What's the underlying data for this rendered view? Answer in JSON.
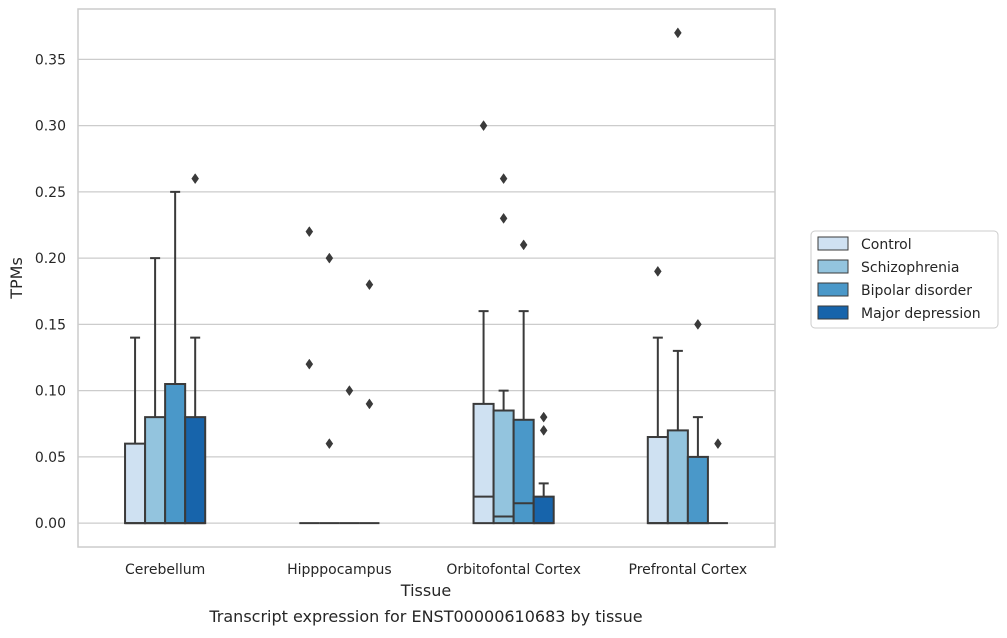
{
  "chart_data": {
    "type": "box",
    "xlabel": "Tissue",
    "ylabel": "TPMs",
    "caption": "Transcript expression for ENST00000610683 by tissue",
    "ylim": [
      -0.018,
      0.388
    ],
    "yticks": [
      0.0,
      0.05,
      0.1,
      0.15,
      0.2,
      0.25,
      0.3,
      0.35
    ],
    "ytick_labels": [
      "0.00",
      "0.05",
      "0.10",
      "0.15",
      "0.20",
      "0.25",
      "0.30",
      "0.35"
    ],
    "grid": "horizontal",
    "legend_position": "right",
    "categories": [
      "Cerebellum",
      "Hipppocampus",
      "Orbitofontal Cortex",
      "Prefrontal Cortex"
    ],
    "series": [
      {
        "name": "Control",
        "color": "#cfe1f2",
        "boxes": [
          {
            "q1": 0.0,
            "median": 0.0,
            "q3": 0.06,
            "whislo": 0.0,
            "whishi": 0.14,
            "fliers": []
          },
          {
            "q1": 0.0,
            "median": 0.0,
            "q3": 0.0,
            "whislo": 0.0,
            "whishi": 0.0,
            "fliers": [
              0.22,
              0.12
            ]
          },
          {
            "q1": 0.0,
            "median": 0.02,
            "q3": 0.09,
            "whislo": 0.0,
            "whishi": 0.16,
            "fliers": [
              0.3
            ]
          },
          {
            "q1": 0.0,
            "median": 0.0,
            "q3": 0.065,
            "whislo": 0.0,
            "whishi": 0.14,
            "fliers": [
              0.19
            ]
          }
        ]
      },
      {
        "name": "Schizophrenia",
        "color": "#93c4de",
        "boxes": [
          {
            "q1": 0.0,
            "median": 0.0,
            "q3": 0.08,
            "whislo": 0.0,
            "whishi": 0.2,
            "fliers": []
          },
          {
            "q1": 0.0,
            "median": 0.0,
            "q3": 0.0,
            "whislo": 0.0,
            "whishi": 0.0,
            "fliers": [
              0.2,
              0.06
            ]
          },
          {
            "q1": 0.0,
            "median": 0.005,
            "q3": 0.085,
            "whislo": 0.0,
            "whishi": 0.1,
            "fliers": [
              0.26,
              0.23
            ]
          },
          {
            "q1": 0.0,
            "median": 0.0,
            "q3": 0.07,
            "whislo": 0.0,
            "whishi": 0.13,
            "fliers": [
              0.37
            ]
          }
        ]
      },
      {
        "name": "Bipolar disorder",
        "color": "#4a98c9",
        "boxes": [
          {
            "q1": 0.0,
            "median": 0.0,
            "q3": 0.105,
            "whislo": 0.0,
            "whishi": 0.25,
            "fliers": []
          },
          {
            "q1": 0.0,
            "median": 0.0,
            "q3": 0.0,
            "whislo": 0.0,
            "whishi": 0.0,
            "fliers": [
              0.1
            ]
          },
          {
            "q1": 0.0,
            "median": 0.015,
            "q3": 0.078,
            "whislo": 0.0,
            "whishi": 0.16,
            "fliers": [
              0.21
            ]
          },
          {
            "q1": 0.0,
            "median": 0.0,
            "q3": 0.05,
            "whislo": 0.0,
            "whishi": 0.08,
            "fliers": [
              0.15
            ]
          }
        ]
      },
      {
        "name": "Major depression",
        "color": "#1764ab",
        "boxes": [
          {
            "q1": 0.0,
            "median": 0.0,
            "q3": 0.08,
            "whislo": 0.0,
            "whishi": 0.14,
            "fliers": [
              0.26
            ]
          },
          {
            "q1": 0.0,
            "median": 0.0,
            "q3": 0.0,
            "whislo": 0.0,
            "whishi": 0.0,
            "fliers": [
              0.18,
              0.09
            ]
          },
          {
            "q1": 0.0,
            "median": 0.0,
            "q3": 0.02,
            "whislo": 0.0,
            "whishi": 0.03,
            "fliers": [
              0.08,
              0.07
            ]
          },
          {
            "q1": 0.0,
            "median": 0.0,
            "q3": 0.0,
            "whislo": 0.0,
            "whishi": 0.0,
            "fliers": [
              0.06
            ]
          }
        ]
      }
    ]
  }
}
